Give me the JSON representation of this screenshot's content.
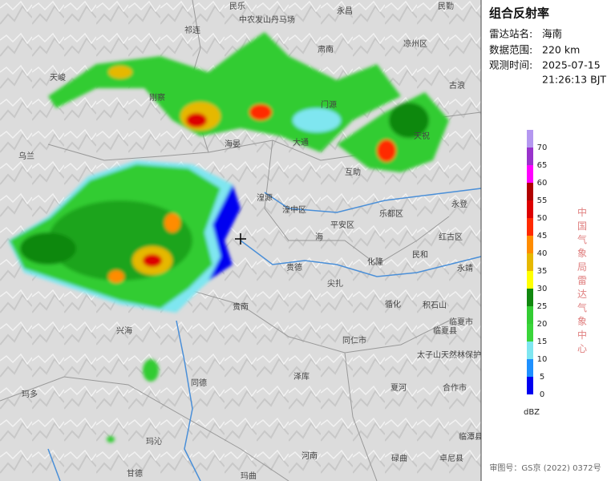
{
  "header": {
    "title": "组合反射率"
  },
  "info": [
    {
      "label": "雷达站名:",
      "value": "海南"
    },
    {
      "label": "数据范围:",
      "value": "220 km"
    },
    {
      "label": "观测时间:",
      "value": "2025-07-15",
      "value2": "21:26:13 BJT"
    }
  ],
  "legend": {
    "unit": "dBZ",
    "levels": [
      {
        "value": 0,
        "color": "#0000f0"
      },
      {
        "value": 5,
        "color": "#1e90ff"
      },
      {
        "value": 10,
        "color": "#7fe6f0"
      },
      {
        "value": 15,
        "color": "#3ad53a"
      },
      {
        "value": 20,
        "color": "#33cc33"
      },
      {
        "value": 25,
        "color": "#11880f"
      },
      {
        "value": 30,
        "color": "#ffff00"
      },
      {
        "value": 35,
        "color": "#e6b800"
      },
      {
        "value": 40,
        "color": "#ff8c00"
      },
      {
        "value": 45,
        "color": "#ff2a00"
      },
      {
        "value": 50,
        "color": "#dd0000"
      },
      {
        "value": 55,
        "color": "#b00000"
      },
      {
        "value": 60,
        "color": "#ff00ff"
      },
      {
        "value": 65,
        "color": "#9933cc"
      },
      {
        "value": 70,
        "color": "#b497f0"
      }
    ]
  },
  "credit": "中国气象局雷达气象中心",
  "footer": "审图号：GS京 (2022) 0372号",
  "places": [
    "民乐",
    "中农发山丹马场",
    "永昌",
    "民勤",
    "祁连",
    "肃南",
    "凉州区",
    "天峻",
    "刚察",
    "古浪",
    "门源",
    "天祝",
    "海晏",
    "大通",
    "乌兰",
    "互助",
    "湟源",
    "湟中区",
    "永登",
    "乐都区",
    "平安区",
    "海",
    "红古区",
    "民和",
    "化隆",
    "贵德",
    "永靖",
    "尖扎",
    "循化",
    "积石山",
    "贵南",
    "兴海",
    "临夏市",
    "临夏县",
    "同仁市",
    "太子山天然林保护区",
    "同德",
    "泽库",
    "夏河",
    "合作市",
    "玛多",
    "玛沁",
    "临潭县",
    "河南",
    "碌曲",
    "卓尼县",
    "甘德",
    "玛曲"
  ]
}
